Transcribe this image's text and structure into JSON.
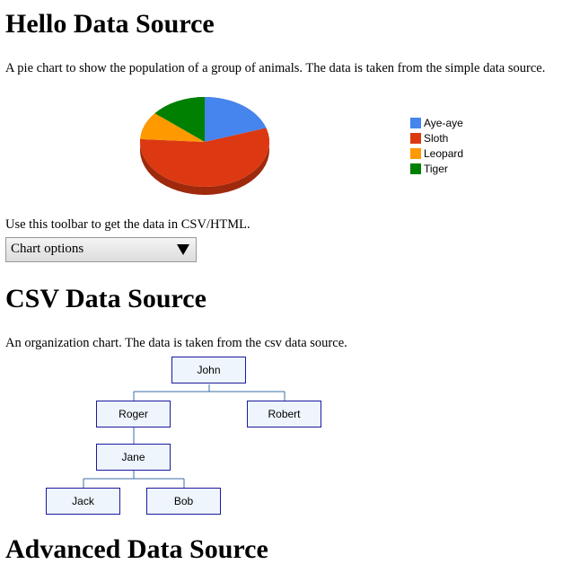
{
  "header": {
    "title": "Hello Data Source"
  },
  "intro": "A pie chart to show the population of a group of animals. The data is taken from the simple data source.",
  "chart_data": {
    "type": "pie",
    "categories": [
      "Aye-aye",
      "Sloth",
      "Leopard",
      "Tiger"
    ],
    "values": [
      20,
      56,
      10,
      14
    ],
    "colors": [
      "#4684ee",
      "#dc3912",
      "#ff9900",
      "#008000"
    ],
    "legend": "right"
  },
  "toolbar_text": "Use this toolbar to get the data in CSV/HTML.",
  "dropdown": "Chart options",
  "csv_section": {
    "title": "CSV Data Source",
    "text": "An organization chart. The data is taken from the csv data source.",
    "nodes": [
      {
        "label": "John"
      },
      {
        "label": "Roger"
      },
      {
        "label": "Robert"
      },
      {
        "label": "Jane"
      },
      {
        "label": "Jack"
      },
      {
        "label": "Bob"
      }
    ]
  },
  "advanced_section": {
    "title": "Advanced Data Source"
  }
}
